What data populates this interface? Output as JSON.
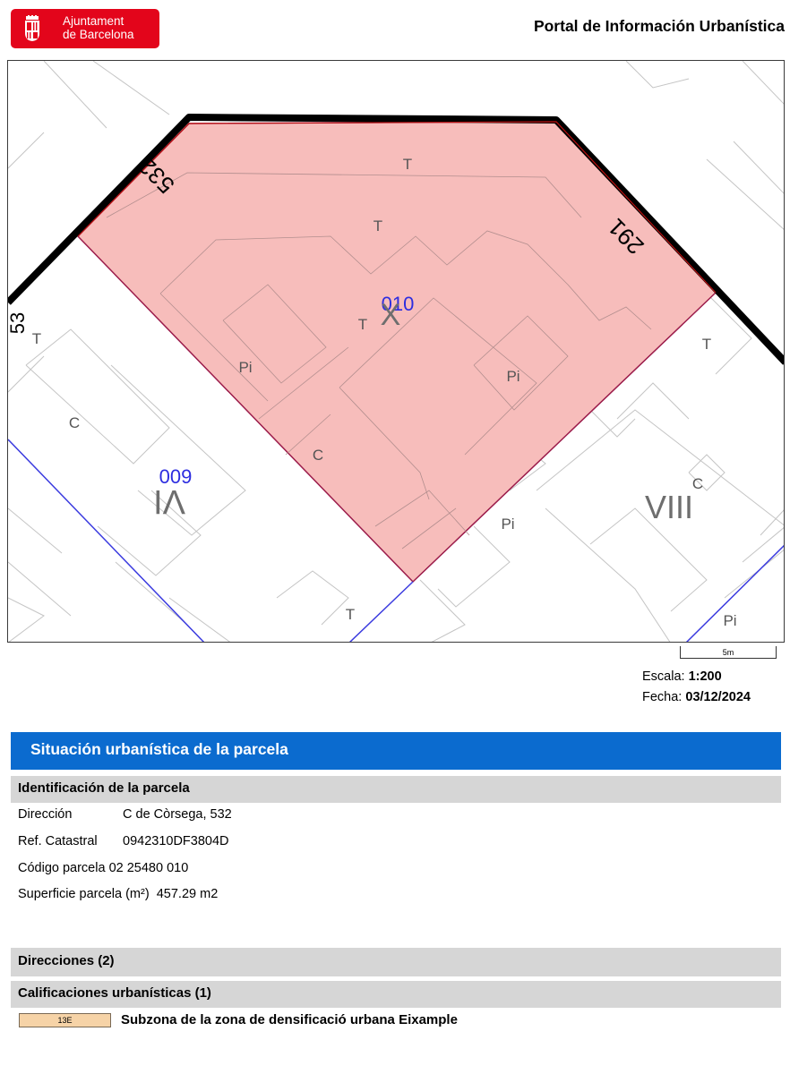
{
  "header": {
    "logo_line1": "Ajuntament",
    "logo_line2": "de Barcelona",
    "portal_title": "Portal de Información Urbanística"
  },
  "map": {
    "labels": {
      "street_532": "532",
      "street_291": "291",
      "street_53_left": "53",
      "parcel_010": "010",
      "parcel_009": "009",
      "height_X": "X",
      "height_VI": "VI",
      "height_VIII": "VIII",
      "use_T": "T",
      "use_Pi": "Pi",
      "use_C": "C"
    },
    "colors": {
      "parcel_fill": "#f7bdbb",
      "parcel_border": "#9b1b4a",
      "parcel_number": "#2d2de0",
      "blue_lines": "#3b3bdf",
      "building_lines": "#bfbfbf"
    }
  },
  "scale": {
    "bar_label": "5m",
    "escala_label": "Escala:",
    "escala_value": "1:200",
    "fecha_label": "Fecha:",
    "fecha_value": "03/12/2024"
  },
  "situacion": {
    "title": "Situación urbanística de la parcela",
    "identificacion": {
      "title": "Identificación de la parcela",
      "direccion_label": "Dirección",
      "direccion_value": "C de Còrsega, 532",
      "ref_label": "Ref. Catastral",
      "ref_value": "0942310DF3804D",
      "codigo_label": "Código parcela",
      "codigo_value": "02 25480 010",
      "superficie_label": "Superficie parcela (m²)",
      "superficie_value": "457.29 m2"
    },
    "direcciones_title": "Direcciones (2)",
    "calificaciones": {
      "title": "Calificaciones urbanísticas (1)",
      "items": [
        {
          "code": "13E",
          "description": "Subzona de la zona de densificació urbana Eixample",
          "color": "#f6d3a7"
        }
      ]
    }
  }
}
